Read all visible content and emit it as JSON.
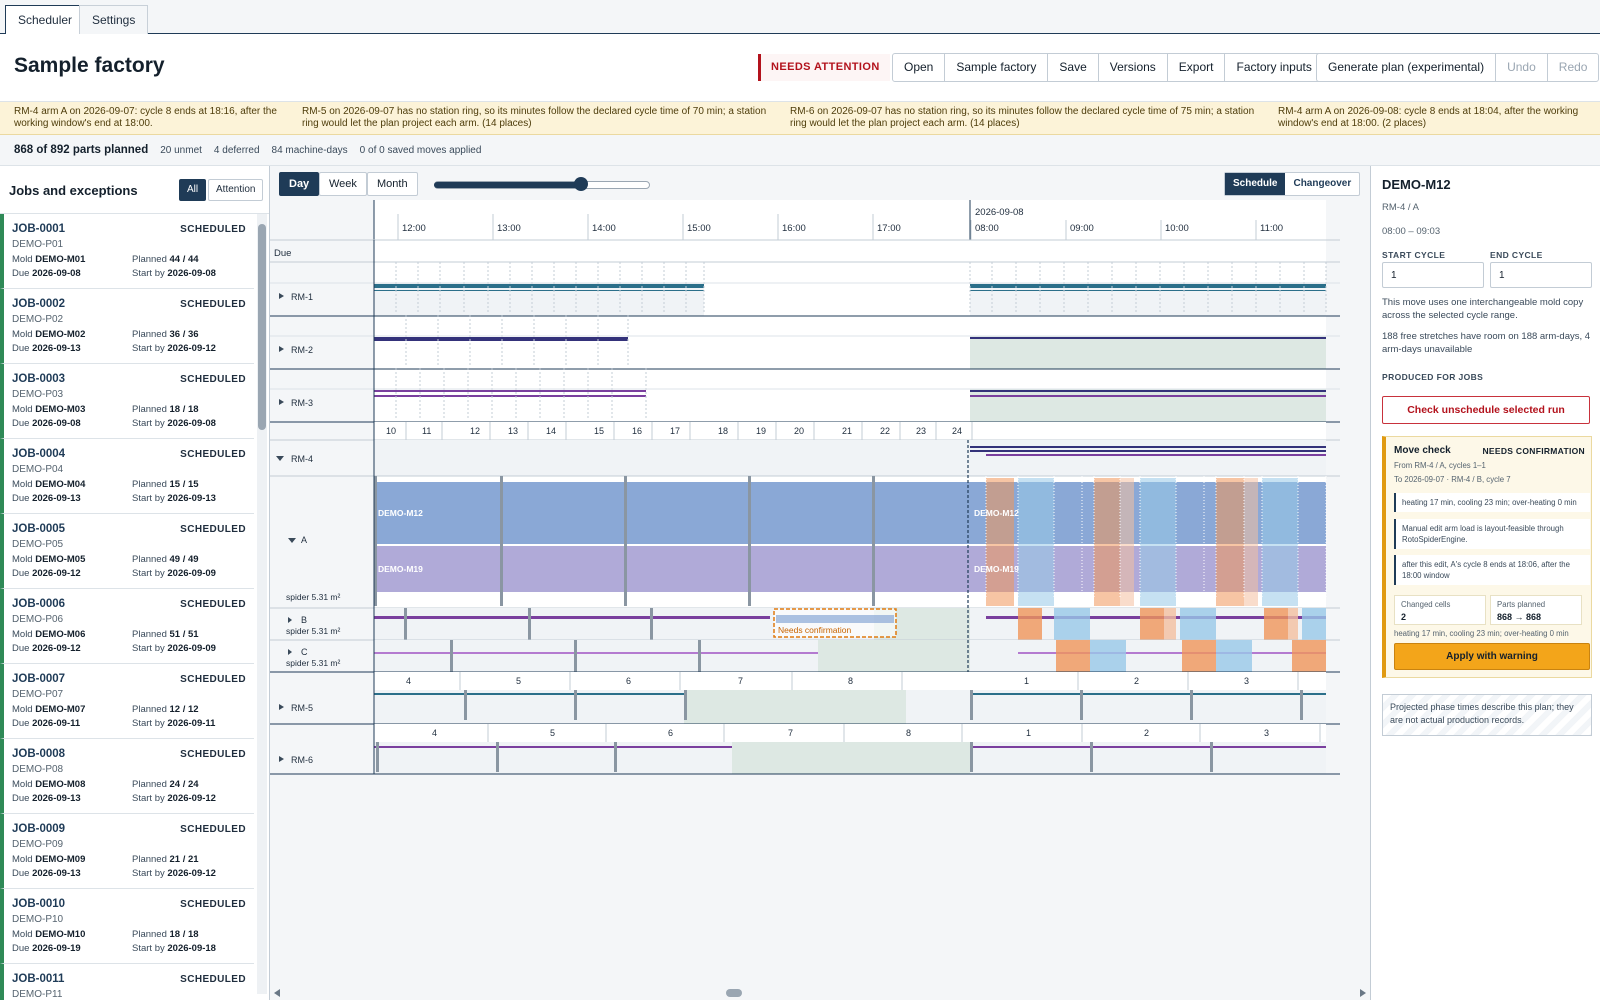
{
  "tabs": [
    {
      "label": "Scheduler",
      "active": true
    },
    {
      "label": "Settings",
      "active": false
    }
  ],
  "header": {
    "title": "Sample factory",
    "attention_badge": "NEEDS ATTENTION",
    "actions": [
      "Open",
      "Sample factory",
      "Save",
      "Versions",
      "Export",
      "Factory inputs"
    ],
    "generate_label": "Generate plan (experimental)",
    "undo_label": "Undo",
    "redo_label": "Redo"
  },
  "warnings": [
    "RM-4 arm A on 2026-09-07: cycle 8 ends at 18:16, after the working window's end at 18:00.",
    "RM-5 on 2026-09-07 has no station ring, so its minutes follow the declared cycle time of 70 min; a station ring would let the plan project each arm. (14 places)",
    "RM-6 on 2026-09-07 has no station ring, so its minutes follow the declared cycle time of 75 min; a station ring would let the plan project each arm. (14 places)",
    "RM-4 arm A on 2026-09-08: cycle 8 ends at 18:04, after the working window's end at 18:00. (2 places)"
  ],
  "summary": {
    "planned": "868 of 892 parts planned",
    "unmet": "20 unmet",
    "deferred": "4 deferred",
    "machine_days": "84 machine-days",
    "saved_moves": "0 of 0 saved moves applied"
  },
  "jobs_panel": {
    "title": "Jobs and exceptions",
    "filter_all": "All",
    "filter_attention": "Attention",
    "labels": {
      "mold": "Mold",
      "due": "Due",
      "planned": "Planned",
      "start_by": "Start by"
    },
    "jobs": [
      {
        "id": "JOB-0001",
        "status": "SCHEDULED",
        "part": "DEMO-P01",
        "mold": "DEMO-M01",
        "planned": "44 / 44",
        "due": "2026-09-08",
        "start_by": "2026-09-08"
      },
      {
        "id": "JOB-0002",
        "status": "SCHEDULED",
        "part": "DEMO-P02",
        "mold": "DEMO-M02",
        "planned": "36 / 36",
        "due": "2026-09-13",
        "start_by": "2026-09-12"
      },
      {
        "id": "JOB-0003",
        "status": "SCHEDULED",
        "part": "DEMO-P03",
        "mold": "DEMO-M03",
        "planned": "18 / 18",
        "due": "2026-09-08",
        "start_by": "2026-09-08"
      },
      {
        "id": "JOB-0004",
        "status": "SCHEDULED",
        "part": "DEMO-P04",
        "mold": "DEMO-M04",
        "planned": "15 / 15",
        "due": "2026-09-13",
        "start_by": "2026-09-13"
      },
      {
        "id": "JOB-0005",
        "status": "SCHEDULED",
        "part": "DEMO-P05",
        "mold": "DEMO-M05",
        "planned": "49 / 49",
        "due": "2026-09-12",
        "start_by": "2026-09-09"
      },
      {
        "id": "JOB-0006",
        "status": "SCHEDULED",
        "part": "DEMO-P06",
        "mold": "DEMO-M06",
        "planned": "51 / 51",
        "due": "2026-09-12",
        "start_by": "2026-09-09"
      },
      {
        "id": "JOB-0007",
        "status": "SCHEDULED",
        "part": "DEMO-P07",
        "mold": "DEMO-M07",
        "planned": "12 / 12",
        "due": "2026-09-11",
        "start_by": "2026-09-11"
      },
      {
        "id": "JOB-0008",
        "status": "SCHEDULED",
        "part": "DEMO-P08",
        "mold": "DEMO-M08",
        "planned": "24 / 24",
        "due": "2026-09-13",
        "start_by": "2026-09-12"
      },
      {
        "id": "JOB-0009",
        "status": "SCHEDULED",
        "part": "DEMO-P09",
        "mold": "DEMO-M09",
        "planned": "21 / 21",
        "due": "2026-09-13",
        "start_by": "2026-09-12"
      },
      {
        "id": "JOB-0010",
        "status": "SCHEDULED",
        "part": "DEMO-P10",
        "mold": "DEMO-M10",
        "planned": "18 / 18",
        "due": "2026-09-19",
        "start_by": "2026-09-18"
      },
      {
        "id": "JOB-0011",
        "status": "SCHEDULED",
        "part": "DEMO-P11"
      }
    ]
  },
  "gantt": {
    "views": [
      "Day",
      "Week",
      "Month"
    ],
    "active_view": "Day",
    "zoom_fraction": 0.68,
    "modes": [
      "Schedule",
      "Changeover"
    ],
    "active_mode": "Schedule",
    "date_label": "2026-09-08",
    "times_day1": [
      "12:00",
      "13:00",
      "14:00",
      "15:00",
      "16:00",
      "17:00"
    ],
    "times_day2": [
      "08:00",
      "09:00",
      "10:00",
      "11:00"
    ],
    "due_label": "Due",
    "machines": [
      "RM-1",
      "RM-2",
      "RM-3",
      "RM-4",
      "RM-5",
      "RM-6"
    ],
    "arms": [
      {
        "name": "A",
        "capacity": "spider 5.31 m²"
      },
      {
        "name": "B",
        "capacity": "spider 5.31 m²"
      },
      {
        "name": "C",
        "capacity": "spider 5.31 m²"
      }
    ],
    "rm4_cycles": [
      "10",
      "11",
      "12",
      "13",
      "14",
      "15",
      "16",
      "17",
      "18",
      "19",
      "20",
      "21",
      "22",
      "23",
      "24"
    ],
    "rm5_cycles": [
      "4",
      "5",
      "6",
      "7",
      "8",
      "1",
      "2",
      "3"
    ],
    "rm6_cycles": [
      "4",
      "5",
      "6",
      "7",
      "8",
      "1",
      "2",
      "3"
    ],
    "mold_a": "DEMO-M12",
    "mold_b": "DEMO-M19",
    "confirm_label": "Needs confirmation",
    "colors": {
      "teal": "#2b6f8a",
      "navy": "#34327a",
      "purple": "#7a3f9e",
      "lilac": "#b47ad0",
      "blue_block": "#8aa8d6",
      "violet_block": "#b0aad8",
      "orange": "#f0955a",
      "lightblue": "#98c8e8"
    }
  },
  "detail": {
    "title": "DEMO-M12",
    "location": "RM-4 / A",
    "time_range": "08:00 – 09:03",
    "start_cycle_label": "START CYCLE",
    "end_cycle_label": "END CYCLE",
    "start_cycle": "1",
    "end_cycle": "1",
    "note1": "This move uses one interchangeable mold copy across the selected cycle range.",
    "note2": "188 free stretches have room on 188 arm-days, 4 arm-days unavailable",
    "produced_label": "PRODUCED FOR JOBS",
    "unschedule_label": "Check unschedule selected run",
    "move_check": {
      "title": "Move check",
      "badge": "NEEDS CONFIRMATION",
      "from": "From RM-4 / A, cycles 1–1",
      "to": "To 2026-09-07 · RM-4 / B, cycle 7",
      "notes": [
        "heating 17 min, cooling 23 min; over-heating 0 min",
        "Manual edit arm load is layout-feasible through RotoSpiderEngine.",
        "after this edit, A's cycle 8 ends at 18:06, after the 18:00 window"
      ],
      "changed_label": "Changed cells",
      "changed_value": "2",
      "parts_label": "Parts planned",
      "parts_value": "868 → 868",
      "footer": "heating 17 min, cooling 23 min; over-heating 0 min",
      "apply_label": "Apply with warning"
    },
    "projected_note": "Projected phase times describe this plan; they are not actual production records."
  }
}
